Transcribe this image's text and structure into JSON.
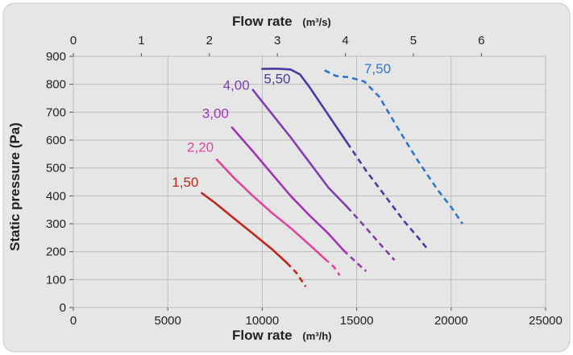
{
  "chart_data": {
    "type": "line",
    "xlabel": "Flow rate",
    "xlabel_unit": "(m³/h)",
    "x2label": "Flow rate",
    "x2label_unit": "(m³/s)",
    "ylabel": "Static pressure (Pa)",
    "xlim": [
      0,
      25000
    ],
    "x2lim": [
      0,
      6.944
    ],
    "ylim": [
      0,
      900
    ],
    "xticks": [
      "0",
      "5000",
      "10000",
      "15000",
      "20000",
      "25000"
    ],
    "x2ticks": [
      "0",
      "1",
      "2",
      "3",
      "4",
      "5",
      "6"
    ],
    "yticks": [
      "0",
      "100",
      "200",
      "300",
      "400",
      "500",
      "600",
      "700",
      "800",
      "900"
    ],
    "grid": true,
    "colors": {
      "background": "#e6e6e6",
      "grid": "#bdbdbd",
      "frame": "#ffffff"
    },
    "series": [
      {
        "name": "1,50",
        "color": "#c0261c",
        "solid": [
          [
            6800,
            410
          ],
          [
            7500,
            375
          ],
          [
            8500,
            320
          ],
          [
            9500,
            265
          ],
          [
            10500,
            210
          ],
          [
            11300,
            160
          ]
        ],
        "dashed": [
          [
            11300,
            160
          ],
          [
            11800,
            125
          ],
          [
            12300,
            75
          ]
        ]
      },
      {
        "name": "2,20",
        "color": "#e0469e",
        "solid": [
          [
            7600,
            530
          ],
          [
            8500,
            465
          ],
          [
            9500,
            400
          ],
          [
            10500,
            340
          ],
          [
            11500,
            285
          ],
          [
            12500,
            225
          ],
          [
            13300,
            175
          ]
        ],
        "dashed": [
          [
            13300,
            175
          ],
          [
            13800,
            145
          ],
          [
            14100,
            115
          ]
        ]
      },
      {
        "name": "3,00",
        "color": "#a035b4",
        "solid": [
          [
            8400,
            645
          ],
          [
            9500,
            560
          ],
          [
            10500,
            480
          ],
          [
            11500,
            400
          ],
          [
            12500,
            330
          ],
          [
            13500,
            265
          ],
          [
            14300,
            205
          ]
        ],
        "dashed": [
          [
            14300,
            205
          ],
          [
            15000,
            160
          ],
          [
            15500,
            130
          ]
        ]
      },
      {
        "name": "4,00",
        "color": "#7f3fb0",
        "solid": [
          [
            9500,
            780
          ],
          [
            10500,
            695
          ],
          [
            11500,
            610
          ],
          [
            12500,
            520
          ],
          [
            13500,
            430
          ],
          [
            14500,
            360
          ]
        ],
        "dashed": [
          [
            14500,
            360
          ],
          [
            15500,
            285
          ],
          [
            16400,
            215
          ],
          [
            17000,
            170
          ]
        ]
      },
      {
        "name": "5,50",
        "color": "#4a3aa4",
        "solid": [
          [
            10000,
            855
          ],
          [
            10800,
            856
          ],
          [
            11500,
            853
          ],
          [
            12000,
            835
          ],
          [
            12500,
            790
          ],
          [
            13500,
            690
          ],
          [
            14500,
            590
          ]
        ],
        "dashed": [
          [
            14500,
            590
          ],
          [
            15500,
            490
          ],
          [
            16500,
            400
          ],
          [
            17500,
            310
          ],
          [
            18200,
            255
          ],
          [
            18800,
            205
          ]
        ]
      },
      {
        "name": "7,50",
        "color": "#2b77cc",
        "solid": [],
        "dashed": [
          [
            13300,
            850
          ],
          [
            13900,
            830
          ],
          [
            14600,
            825
          ],
          [
            15400,
            810
          ],
          [
            16200,
            755
          ],
          [
            17200,
            640
          ],
          [
            18200,
            530
          ],
          [
            19300,
            420
          ],
          [
            20000,
            360
          ],
          [
            20600,
            300
          ]
        ]
      }
    ]
  }
}
